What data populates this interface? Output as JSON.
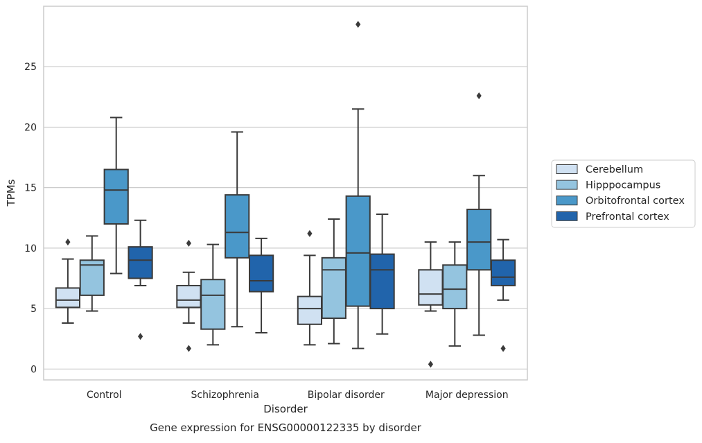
{
  "chart_data": {
    "type": "box",
    "title": "",
    "caption": "Gene expression for ENSG00000122335 by disorder",
    "xlabel": "Disorder",
    "ylabel": "TPMs",
    "ylim": [
      -0.9,
      30.0
    ],
    "yticks": [
      0,
      5,
      10,
      15,
      20,
      25
    ],
    "grid": "horizontal",
    "legend_position": "right",
    "categories": [
      "Control",
      "Schizophrenia",
      "Bipolar disorder",
      "Major depression"
    ],
    "series": [
      {
        "name": "Cerebellum",
        "color": "#d0e1f2",
        "boxes": [
          {
            "whisker_low": 3.8,
            "q1": 5.1,
            "median": 5.7,
            "q3": 6.7,
            "whisker_high": 9.1,
            "outliers": [
              10.5
            ]
          },
          {
            "whisker_low": 3.8,
            "q1": 5.1,
            "median": 5.7,
            "q3": 6.9,
            "whisker_high": 8.0,
            "outliers": [
              1.7,
              10.4
            ]
          },
          {
            "whisker_low": 2.0,
            "q1": 3.7,
            "median": 5.0,
            "q3": 6.0,
            "whisker_high": 9.4,
            "outliers": [
              11.2
            ]
          },
          {
            "whisker_low": 4.8,
            "q1": 5.3,
            "median": 6.2,
            "q3": 8.2,
            "whisker_high": 10.5,
            "outliers": [
              0.4
            ]
          }
        ]
      },
      {
        "name": "Hipppocampus",
        "color": "#94c4df",
        "boxes": [
          {
            "whisker_low": 4.8,
            "q1": 6.1,
            "median": 8.6,
            "q3": 9.0,
            "whisker_high": 11.0,
            "outliers": []
          },
          {
            "whisker_low": 2.0,
            "q1": 3.3,
            "median": 6.1,
            "q3": 7.4,
            "whisker_high": 10.3,
            "outliers": []
          },
          {
            "whisker_low": 2.1,
            "q1": 4.2,
            "median": 8.2,
            "q3": 9.2,
            "whisker_high": 12.4,
            "outliers": []
          },
          {
            "whisker_low": 1.9,
            "q1": 5.0,
            "median": 6.6,
            "q3": 8.6,
            "whisker_high": 10.5,
            "outliers": []
          }
        ]
      },
      {
        "name": "Orbitofrontal cortex",
        "color": "#4a98c9",
        "boxes": [
          {
            "whisker_low": 7.9,
            "q1": 12.0,
            "median": 14.8,
            "q3": 16.5,
            "whisker_high": 20.8,
            "outliers": []
          },
          {
            "whisker_low": 3.5,
            "q1": 9.2,
            "median": 11.3,
            "q3": 14.4,
            "whisker_high": 19.6,
            "outliers": []
          },
          {
            "whisker_low": 1.7,
            "q1": 5.2,
            "median": 9.6,
            "q3": 14.3,
            "whisker_high": 21.5,
            "outliers": [
              28.5
            ]
          },
          {
            "whisker_low": 2.8,
            "q1": 8.2,
            "median": 10.5,
            "q3": 13.2,
            "whisker_high": 16.0,
            "outliers": [
              22.6
            ]
          }
        ]
      },
      {
        "name": "Prefrontal cortex",
        "color": "#2164ab",
        "boxes": [
          {
            "whisker_low": 6.9,
            "q1": 7.5,
            "median": 9.0,
            "q3": 10.1,
            "whisker_high": 12.3,
            "outliers": [
              2.7
            ]
          },
          {
            "whisker_low": 3.0,
            "q1": 6.4,
            "median": 7.3,
            "q3": 9.4,
            "whisker_high": 10.8,
            "outliers": []
          },
          {
            "whisker_low": 2.9,
            "q1": 5.0,
            "median": 8.2,
            "q3": 9.5,
            "whisker_high": 12.8,
            "outliers": []
          },
          {
            "whisker_low": 5.7,
            "q1": 6.9,
            "median": 7.6,
            "q3": 9.0,
            "whisker_high": 10.7,
            "outliers": [
              1.7
            ]
          }
        ]
      }
    ]
  }
}
